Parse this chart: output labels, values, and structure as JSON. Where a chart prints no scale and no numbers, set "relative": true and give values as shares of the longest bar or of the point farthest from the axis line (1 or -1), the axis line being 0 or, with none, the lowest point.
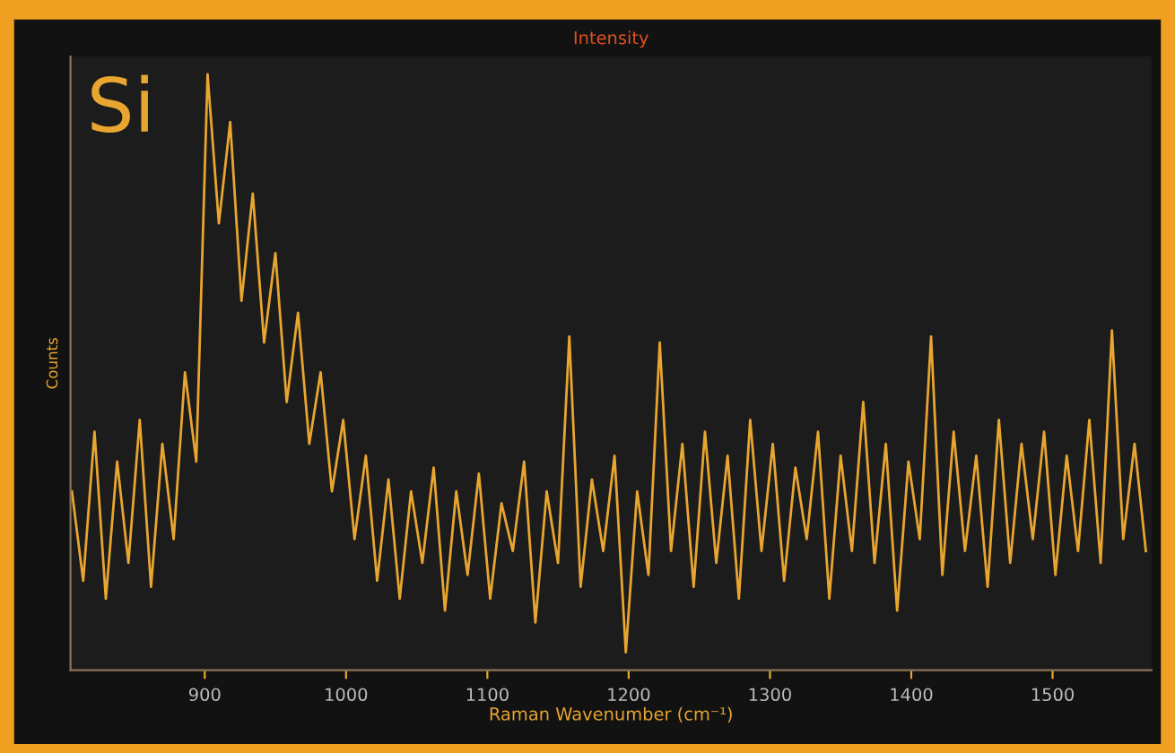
{
  "chart_data": {
    "type": "line",
    "title": "Intensity",
    "xlabel": "Raman Wavenumber (cm⁻¹)",
    "ylabel": "Counts",
    "annotations": [
      "Si"
    ],
    "relative": true,
    "grid": false,
    "legend": false,
    "marker": "none",
    "line_style": "solid",
    "xlim": [
      805,
      1570
    ],
    "xticks": [
      900,
      1000,
      1100,
      1200,
      1300,
      1400,
      1500
    ],
    "x": [
      806,
      814,
      822,
      830,
      838,
      846,
      854,
      862,
      870,
      878,
      886,
      894,
      902,
      910,
      918,
      926,
      934,
      942,
      950,
      958,
      966,
      974,
      982,
      990,
      998,
      1006,
      1014,
      1022,
      1030,
      1038,
      1046,
      1054,
      1062,
      1070,
      1078,
      1086,
      1094,
      1102,
      1110,
      1118,
      1126,
      1134,
      1142,
      1150,
      1158,
      1166,
      1174,
      1182,
      1190,
      1198,
      1206,
      1214,
      1222,
      1230,
      1238,
      1246,
      1254,
      1262,
      1270,
      1278,
      1286,
      1294,
      1302,
      1310,
      1318,
      1326,
      1334,
      1342,
      1350,
      1358,
      1366,
      1374,
      1382,
      1390,
      1398,
      1406,
      1414,
      1422,
      1430,
      1438,
      1446,
      1454,
      1462,
      1470,
      1478,
      1486,
      1494,
      1502,
      1510,
      1518,
      1526,
      1534,
      1542,
      1550,
      1558,
      1566
    ],
    "series": [
      {
        "color": "#e8a530",
        "values": [
          0.3,
          0.15,
          0.4,
          0.12,
          0.35,
          0.18,
          0.42,
          0.14,
          0.38,
          0.22,
          0.5,
          0.35,
          1.0,
          0.75,
          0.92,
          0.62,
          0.8,
          0.55,
          0.7,
          0.45,
          0.6,
          0.38,
          0.5,
          0.3,
          0.42,
          0.22,
          0.36,
          0.15,
          0.32,
          0.12,
          0.3,
          0.18,
          0.34,
          0.1,
          0.3,
          0.16,
          0.33,
          0.12,
          0.28,
          0.2,
          0.35,
          0.08,
          0.3,
          0.18,
          0.56,
          0.14,
          0.32,
          0.2,
          0.36,
          0.03,
          0.3,
          0.16,
          0.55,
          0.2,
          0.38,
          0.14,
          0.4,
          0.18,
          0.36,
          0.12,
          0.42,
          0.2,
          0.38,
          0.15,
          0.34,
          0.22,
          0.4,
          0.12,
          0.36,
          0.2,
          0.45,
          0.18,
          0.38,
          0.1,
          0.35,
          0.22,
          0.56,
          0.16,
          0.4,
          0.2,
          0.36,
          0.14,
          0.42,
          0.18,
          0.38,
          0.22,
          0.4,
          0.16,
          0.36,
          0.2,
          0.42,
          0.18,
          0.57,
          0.22,
          0.38,
          0.2
        ]
      }
    ]
  }
}
